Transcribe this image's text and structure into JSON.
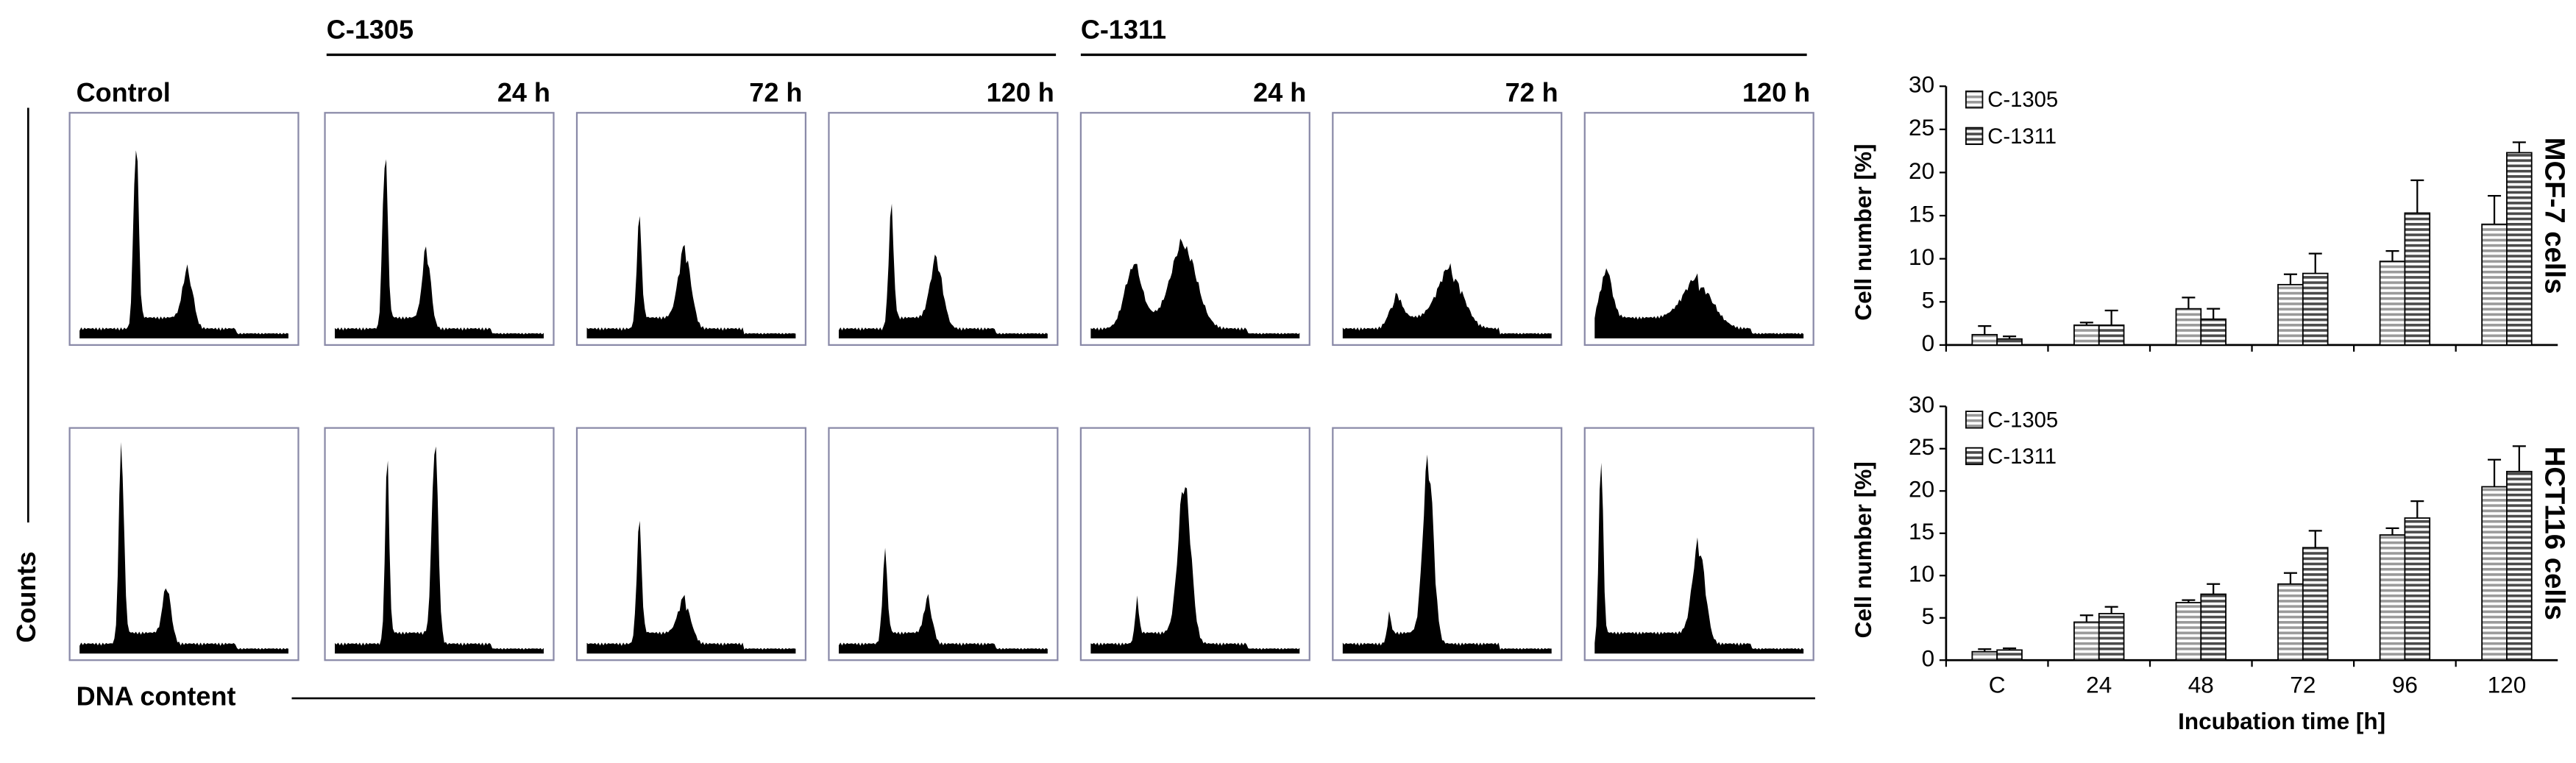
{
  "figure": {
    "group_labels": [
      "C-1305",
      "C-1311"
    ],
    "panel_labels": [
      "Control",
      "24 h",
      "72 h",
      "120 h",
      "24 h",
      "72 h",
      "120 h"
    ],
    "y_axis_label": "Counts",
    "x_axis_label": "DNA content"
  },
  "chart_data": [
    {
      "type": "bar",
      "title": "MCF-7 cells",
      "y_label": "Cell number [%]",
      "categories": [
        null,
        null,
        null,
        null,
        null,
        null
      ],
      "series": [
        {
          "name": "C-1305",
          "color": "#9a9a9a",
          "values": [
            1.2,
            2.3,
            4.2,
            7,
            9.7,
            14
          ],
          "errors": [
            1,
            0.3,
            1.3,
            1.2,
            1.2,
            3.3
          ]
        },
        {
          "name": "C-1311",
          "color": "#4a4a4a",
          "values": [
            0.7,
            2.3,
            3,
            8.3,
            15.3,
            22.3
          ],
          "errors": [
            0.3,
            1.7,
            1.2,
            2.3,
            3.8,
            1.2
          ]
        }
      ],
      "ylim": [
        0,
        30
      ],
      "yticks": [
        0,
        5,
        10,
        15,
        20,
        25,
        30
      ],
      "legend": "upper left",
      "grid": false
    },
    {
      "type": "bar",
      "title": "HCT116 cells",
      "y_label": "Cell number [%]",
      "x_label": "Incubation time [h]",
      "categories": [
        "C",
        "24",
        "48",
        "72",
        "96",
        "120"
      ],
      "series": [
        {
          "name": "C-1305",
          "color": "#9a9a9a",
          "values": [
            1,
            4.5,
            6.8,
            9,
            14.8,
            20.5
          ],
          "errors": [
            0.3,
            0.8,
            0.3,
            1.3,
            0.8,
            3.2
          ]
        },
        {
          "name": "C-1311",
          "color": "#4a4a4a",
          "values": [
            1.2,
            5.5,
            7.8,
            13.3,
            16.8,
            22.3
          ],
          "errors": [
            0.2,
            0.8,
            1.2,
            2,
            2,
            3
          ]
        }
      ],
      "ylim": [
        0,
        30
      ],
      "yticks": [
        0,
        5,
        10,
        15,
        20,
        25,
        30
      ],
      "legend": "upper left",
      "grid": false
    }
  ]
}
